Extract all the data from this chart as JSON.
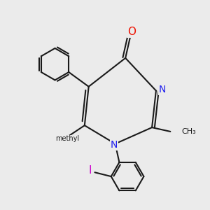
{
  "background_color": "#ebebeb",
  "bond_color": "#1a1a1a",
  "N_color": "#2020ee",
  "O_color": "#ee1100",
  "I_color": "#cc00cc",
  "lw": 1.5,
  "figsize": [
    3.0,
    3.0
  ],
  "dpi": 100,
  "xlim": [
    -1.0,
    9.0
  ],
  "ylim": [
    -0.5,
    9.5
  ]
}
